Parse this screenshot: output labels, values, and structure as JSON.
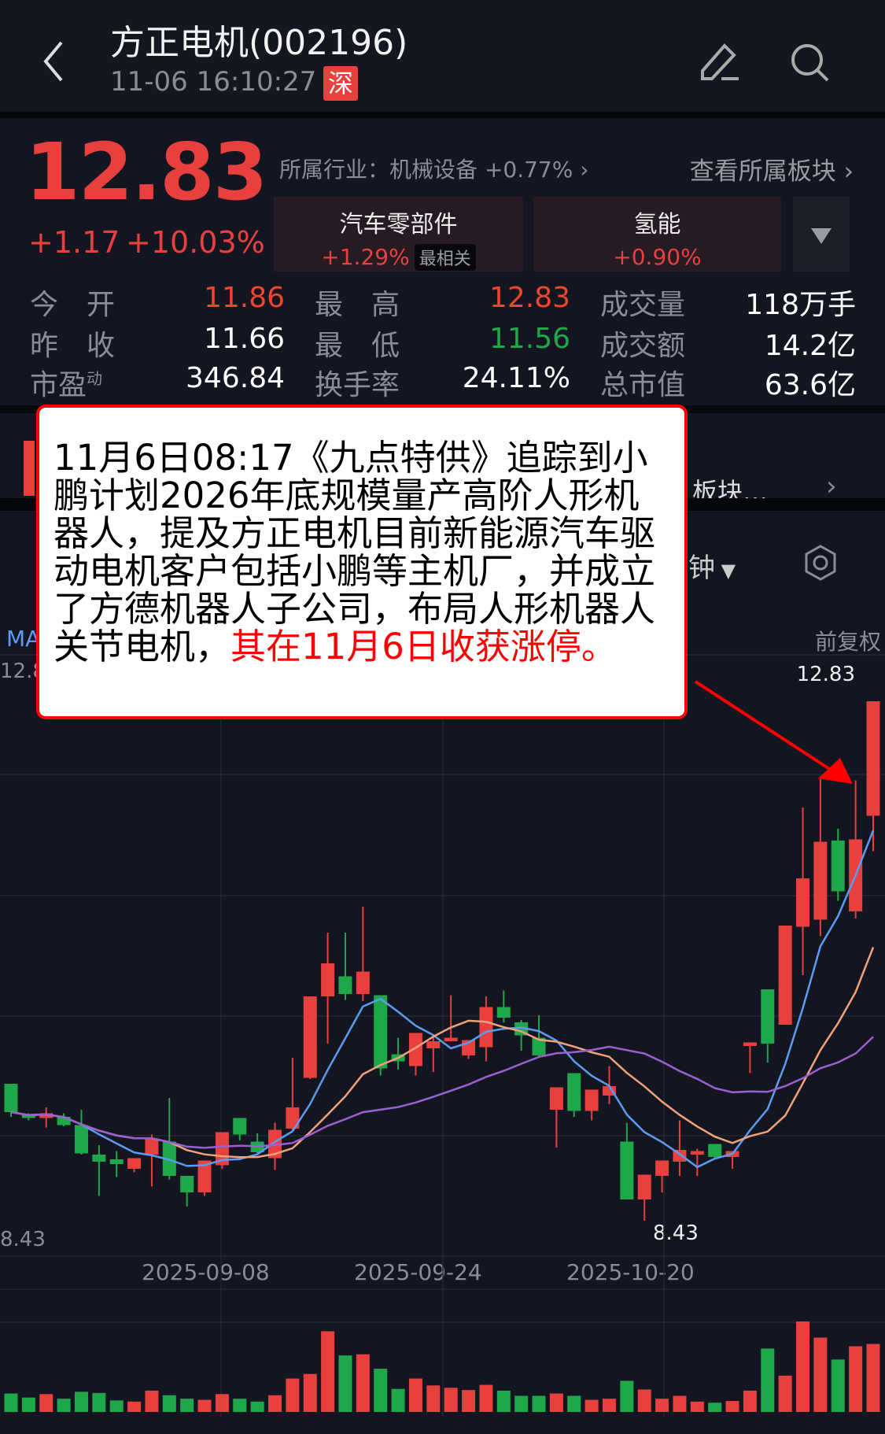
{
  "header": {
    "title": "方正电机(002196)",
    "time": "11-06 16:10:27",
    "exchange_badge": "深",
    "icons": [
      "back-chevron-icon",
      "edit-icon",
      "search-icon"
    ]
  },
  "quote": {
    "price": "12.83",
    "change": "+1.17",
    "change_pct": "+10.03%",
    "industry_prefix": "所属行业：",
    "industry_name": "机械设备",
    "industry_change": "+0.77%",
    "view_sectors": "查看所属板块",
    "color_up": "#e8403f",
    "color_down": "#1fa84a"
  },
  "sectors": [
    {
      "name": "汽车零部件",
      "change": "+1.29%",
      "tag": "最相关"
    },
    {
      "name": "氢能",
      "change": "+0.90%"
    }
  ],
  "stats": [
    [
      {
        "label": "今　开",
        "value": "11.86",
        "color": "#f0452e"
      },
      {
        "label": "最　高",
        "value": "12.83",
        "color": "#f0452e"
      },
      {
        "label": "成交量",
        "value": "118万手",
        "color": "#ffffff"
      }
    ],
    [
      {
        "label": "昨　收",
        "value": "11.66",
        "color": "#ffffff"
      },
      {
        "label": "最　低",
        "value": "11.56",
        "color": "#1fa84a"
      },
      {
        "label": "成交额",
        "value": "14.2亿",
        "color": "#ffffff"
      }
    ],
    [
      {
        "label": "市盈",
        "sup": "动",
        "value": "346.84",
        "color": "#ffffff"
      },
      {
        "label": "换手率",
        "value": "24.11%",
        "color": "#ffffff"
      },
      {
        "label": "总市值",
        "value": "63.6亿",
        "color": "#ffffff"
      }
    ]
  ],
  "hidden_row": {
    "text": "板块…"
  },
  "tabs": {
    "period_partial": "钟"
  },
  "chart": {
    "ma_label": "MA",
    "adjust": "前复权",
    "max_label": "12.83",
    "left_top_label": "12.8",
    "min_left": "8.43",
    "min_marker": "8.43",
    "dates": [
      "2025-09-08",
      "2025-09-24",
      "2025-10-20"
    ]
  },
  "annotation": {
    "text_black": "11月6日08:17《九点特供》追踪到小鹏计划2026年底规模量产高阶人形机器人，提及方正电机目前新能源汽车驱动电机客户包括小鹏等主机厂，并成立了方德机器人子公司，布局人形机器人关节电机，",
    "text_red": "其在11月6日收获涨停。"
  },
  "chart_data": {
    "type": "candlestick",
    "ylim": [
      8.43,
      12.83
    ],
    "ma_periods": [
      5,
      10,
      20
    ],
    "ma_colors": [
      "#5b9cf0",
      "#f0a27a",
      "#9a5fd0"
    ],
    "x_ticks": [
      "2025-09-08",
      "2025-09-24",
      "2025-10-20"
    ],
    "candles": [
      [
        9.59,
        9.59,
        9.31,
        9.35
      ],
      [
        9.33,
        9.34,
        9.28,
        9.3
      ],
      [
        9.3,
        9.39,
        9.22,
        9.34
      ],
      [
        9.31,
        9.34,
        9.23,
        9.24
      ],
      [
        9.24,
        9.37,
        8.99,
        9.0
      ],
      [
        8.99,
        9.07,
        8.64,
        8.93
      ],
      [
        8.95,
        9.02,
        8.8,
        8.91
      ],
      [
        8.87,
        8.96,
        8.84,
        8.96
      ],
      [
        8.99,
        9.16,
        8.72,
        9.12
      ],
      [
        9.1,
        9.47,
        8.78,
        8.81
      ],
      [
        8.81,
        8.81,
        8.55,
        8.67
      ],
      [
        8.67,
        8.94,
        8.64,
        8.94
      ],
      [
        8.9,
        9.18,
        8.87,
        9.18
      ],
      [
        9.3,
        9.3,
        9.11,
        9.16
      ],
      [
        9.1,
        9.17,
        8.99,
        9.01
      ],
      [
        8.96,
        9.26,
        8.86,
        9.2
      ],
      [
        9.21,
        9.81,
        9.2,
        9.39
      ],
      [
        9.64,
        10.33,
        9.63,
        10.33
      ],
      [
        10.33,
        10.87,
        9.93,
        10.61
      ],
      [
        10.5,
        10.87,
        10.3,
        10.35
      ],
      [
        10.35,
        11.09,
        10.29,
        10.54
      ],
      [
        10.34,
        10.34,
        9.66,
        9.72
      ],
      [
        9.84,
        9.98,
        9.71,
        9.78
      ],
      [
        9.74,
        10.02,
        9.66,
        10.02
      ],
      [
        9.89,
        10.0,
        9.69,
        9.95
      ],
      [
        9.95,
        10.34,
        9.95,
        9.98
      ],
      [
        9.83,
        9.96,
        9.8,
        9.96
      ],
      [
        9.9,
        10.33,
        9.78,
        10.24
      ],
      [
        10.24,
        10.38,
        10.11,
        10.15
      ],
      [
        10.11,
        10.13,
        9.87,
        10.0
      ],
      [
        9.98,
        10.17,
        9.81,
        9.83
      ],
      [
        9.37,
        9.56,
        9.05,
        9.56
      ],
      [
        9.68,
        9.68,
        9.31,
        9.36
      ],
      [
        9.36,
        9.54,
        9.28,
        9.54
      ],
      [
        9.49,
        9.74,
        9.42,
        9.57
      ],
      [
        9.1,
        9.26,
        8.61,
        8.61
      ],
      [
        8.61,
        8.82,
        8.43,
        8.82
      ],
      [
        8.81,
        8.94,
        8.67,
        8.94
      ],
      [
        8.93,
        9.28,
        8.81,
        9.03
      ],
      [
        8.99,
        9.04,
        8.81,
        9.02
      ],
      [
        9.08,
        9.08,
        8.95,
        8.97
      ],
      [
        8.97,
        9.02,
        8.87,
        9.02
      ],
      [
        9.91,
        9.94,
        9.68,
        9.94
      ],
      [
        10.39,
        10.39,
        9.77,
        9.93
      ],
      [
        10.09,
        10.93,
        10.09,
        10.93
      ],
      [
        10.92,
        11.93,
        10.51,
        11.33
      ],
      [
        10.98,
        12.17,
        10.84,
        11.64
      ],
      [
        11.65,
        11.75,
        11.14,
        11.22
      ],
      [
        11.05,
        12.16,
        10.99,
        11.66
      ],
      [
        11.86,
        12.83,
        11.56,
        12.83
      ]
    ],
    "volume_wan_shou": [
      32,
      25,
      31,
      23,
      35,
      33,
      20,
      18,
      37,
      29,
      23,
      21,
      31,
      23,
      18,
      29,
      58,
      66,
      140,
      98,
      100,
      75,
      40,
      58,
      46,
      42,
      38,
      47,
      37,
      28,
      28,
      32,
      28,
      21,
      23,
      54,
      39,
      23,
      28,
      18,
      16,
      19,
      37,
      110,
      63,
      157,
      129,
      91,
      114,
      118
    ]
  }
}
